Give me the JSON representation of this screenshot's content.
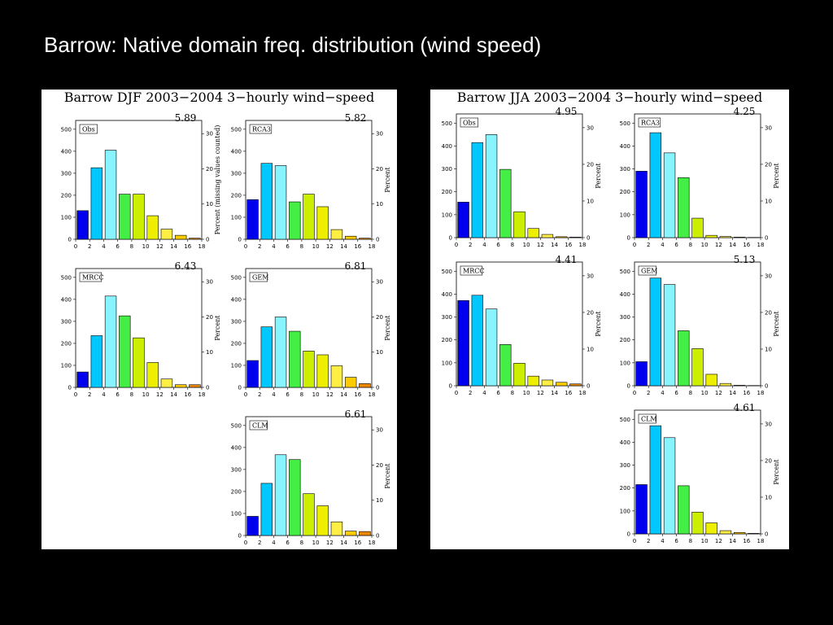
{
  "slide_title": "Barrow: Native domain freq. distribution (wind speed)",
  "colors": {
    "bin_colors": [
      "#0000ee",
      "#00c8ff",
      "#00dcff",
      "#88f4ff",
      "#44ee44",
      "#44ee44",
      "#ccee00",
      "#eeee00",
      "#ffee44",
      "#ffcc00",
      "#ee8800",
      "#cc6600"
    ]
  },
  "panels": [
    {
      "id": "djf",
      "title": "Barrow DJF 2003−2004 3−hourly wind−speed",
      "charts": [
        {
          "model": "Obs",
          "mean": "5.89",
          "ylabel": "Percent (missing values counted)",
          "bars": [
            130,
            325,
            405,
            205,
            205,
            107,
            46,
            18,
            5
          ]
        },
        {
          "model": "RCA3",
          "mean": "5.82",
          "ylabel": "Percent",
          "bars": [
            180,
            345,
            335,
            170,
            205,
            148,
            44,
            14,
            5
          ]
        },
        {
          "model": "MRCC",
          "mean": "6.43",
          "ylabel": "Percent",
          "bars": [
            70,
            235,
            415,
            325,
            225,
            113,
            38,
            12,
            12
          ]
        },
        {
          "model": "GEM",
          "mean": "6.81",
          "ylabel": "Percent",
          "bars": [
            122,
            275,
            320,
            255,
            165,
            148,
            98,
            46,
            17
          ]
        },
        {
          "model": "CLM",
          "mean": "6.61",
          "ylabel": "Percent",
          "bars": [
            87,
            237,
            367,
            345,
            190,
            135,
            62,
            20,
            18
          ]
        }
      ]
    },
    {
      "id": "jja",
      "title": "Barrow JJA 2003−2004 3−hourly wind−speed",
      "charts": [
        {
          "model": "Obs",
          "mean": "4.95",
          "ylabel": "Percent",
          "bars": [
            155,
            415,
            450,
            298,
            113,
            40,
            14,
            4,
            2
          ]
        },
        {
          "model": "RCA3",
          "mean": "4.25",
          "ylabel": "Percent",
          "bars": [
            290,
            458,
            370,
            262,
            85,
            10,
            5,
            2,
            1
          ]
        },
        {
          "model": "MRCC",
          "mean": "4.41",
          "ylabel": "Percent",
          "bars": [
            372,
            395,
            335,
            180,
            98,
            42,
            25,
            15,
            8
          ]
        },
        {
          "model": "GEM",
          "mean": "5.13",
          "ylabel": "Percent",
          "bars": [
            105,
            470,
            442,
            240,
            162,
            50,
            10,
            2,
            1
          ]
        },
        {
          "model": "CLM",
          "mean": "4.61",
          "ylabel": "Percent",
          "bars": [
            215,
            472,
            420,
            210,
            95,
            48,
            14,
            6,
            2
          ]
        }
      ]
    }
  ],
  "chart_data": [
    {
      "type": "bar",
      "title": "Barrow DJF 2003−2004 3−hourly wind−speed",
      "xlabel": "",
      "ylabel": "Percent (missing values counted)",
      "x_ticks": [
        0,
        2,
        4,
        6,
        8,
        10,
        12,
        14,
        16,
        18
      ],
      "y_ticks": [
        0,
        100,
        200,
        300,
        400,
        500
      ],
      "y2_ticks": [
        0,
        10,
        20,
        30
      ],
      "xlim": [
        0,
        18
      ],
      "ylim": [
        0,
        540
      ],
      "bin_centers": [
        1,
        3,
        5,
        7,
        9,
        11,
        13,
        15,
        17
      ],
      "series": [
        {
          "name": "Obs",
          "mean": 5.89,
          "values": [
            130,
            325,
            405,
            205,
            205,
            107,
            46,
            18,
            5
          ]
        },
        {
          "name": "RCA3",
          "mean": 5.82,
          "values": [
            180,
            345,
            335,
            170,
            205,
            148,
            44,
            14,
            5
          ]
        },
        {
          "name": "MRCC",
          "mean": 6.43,
          "values": [
            70,
            235,
            415,
            325,
            225,
            113,
            38,
            12,
            12
          ]
        },
        {
          "name": "GEM",
          "mean": 6.81,
          "values": [
            122,
            275,
            320,
            255,
            165,
            148,
            98,
            46,
            17
          ]
        },
        {
          "name": "CLM",
          "mean": 6.61,
          "values": [
            87,
            237,
            367,
            345,
            190,
            135,
            62,
            20,
            18
          ]
        }
      ]
    },
    {
      "type": "bar",
      "title": "Barrow JJA 2003−2004 3−hourly wind−speed",
      "xlabel": "",
      "ylabel": "Percent",
      "x_ticks": [
        0,
        2,
        4,
        6,
        8,
        10,
        12,
        14,
        16,
        18
      ],
      "y_ticks": [
        0,
        100,
        200,
        300,
        400,
        500
      ],
      "y2_ticks": [
        0,
        10,
        20,
        30
      ],
      "xlim": [
        0,
        18
      ],
      "ylim": [
        0,
        540
      ],
      "bin_centers": [
        1,
        3,
        5,
        7,
        9,
        11,
        13,
        15,
        17
      ],
      "series": [
        {
          "name": "Obs",
          "mean": 4.95,
          "values": [
            155,
            415,
            450,
            298,
            113,
            40,
            14,
            4,
            2
          ]
        },
        {
          "name": "RCA3",
          "mean": 4.25,
          "values": [
            290,
            458,
            370,
            262,
            85,
            10,
            5,
            2,
            1
          ]
        },
        {
          "name": "MRCC",
          "mean": 4.41,
          "values": [
            372,
            395,
            335,
            180,
            98,
            42,
            25,
            15,
            8
          ]
        },
        {
          "name": "GEM",
          "mean": 5.13,
          "values": [
            105,
            470,
            442,
            240,
            162,
            50,
            10,
            2,
            1
          ]
        },
        {
          "name": "CLM",
          "mean": 4.61,
          "values": [
            215,
            472,
            420,
            210,
            95,
            48,
            14,
            6,
            2
          ]
        }
      ]
    }
  ],
  "axes": {
    "x_ticks": [
      "0",
      "2",
      "4",
      "6",
      "8",
      "10",
      "12",
      "14",
      "16",
      "18"
    ],
    "y_ticks": [
      "0",
      "100",
      "200",
      "300",
      "400",
      "500"
    ],
    "y2_ticks": [
      "0",
      "10",
      "20",
      "30"
    ]
  }
}
